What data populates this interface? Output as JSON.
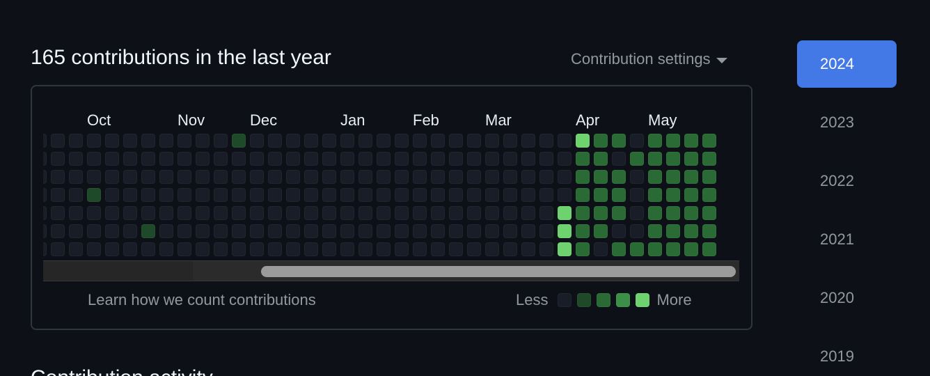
{
  "header": {
    "title": "165 contributions in the last year",
    "settings_label": "Contribution settings",
    "settings_icon": "caret-down-icon"
  },
  "calendar": {
    "months": [
      {
        "label": "Oct",
        "week": 3
      },
      {
        "label": "Nov",
        "week": 8
      },
      {
        "label": "Dec",
        "week": 12
      },
      {
        "label": "Jan",
        "week": 17
      },
      {
        "label": "Feb",
        "week": 21
      },
      {
        "label": "Mar",
        "week": 25
      },
      {
        "label": "Apr",
        "week": 30
      },
      {
        "label": "May",
        "week": 34
      }
    ],
    "levels": [
      "#161b22",
      "#0e4429",
      "#006d32",
      "#26a641",
      "#39d353"
    ],
    "level_colors": [
      "#181d27",
      "#1f4a2a",
      "#2a6b35",
      "#3b8f47",
      "#6ed36f"
    ],
    "weeks": [
      [
        0,
        0,
        0,
        0,
        0,
        0,
        0
      ],
      [
        0,
        0,
        0,
        0,
        0,
        0,
        0
      ],
      [
        0,
        0,
        0,
        0,
        0,
        0,
        0
      ],
      [
        0,
        0,
        0,
        1,
        0,
        0,
        0
      ],
      [
        0,
        0,
        0,
        0,
        0,
        0,
        0
      ],
      [
        0,
        0,
        0,
        0,
        0,
        0,
        0
      ],
      [
        0,
        0,
        0,
        0,
        0,
        1,
        0
      ],
      [
        0,
        0,
        0,
        0,
        0,
        0,
        0
      ],
      [
        0,
        0,
        0,
        0,
        0,
        0,
        0
      ],
      [
        0,
        0,
        0,
        0,
        0,
        0,
        0
      ],
      [
        0,
        0,
        0,
        0,
        0,
        0,
        0
      ],
      [
        1,
        0,
        0,
        0,
        0,
        0,
        0
      ],
      [
        0,
        0,
        0,
        0,
        0,
        0,
        0
      ],
      [
        0,
        0,
        0,
        0,
        0,
        0,
        0
      ],
      [
        0,
        0,
        0,
        0,
        0,
        0,
        0
      ],
      [
        0,
        0,
        0,
        0,
        0,
        0,
        0
      ],
      [
        0,
        0,
        0,
        0,
        0,
        0,
        0
      ],
      [
        0,
        0,
        0,
        0,
        0,
        0,
        0
      ],
      [
        0,
        0,
        0,
        0,
        0,
        0,
        0
      ],
      [
        0,
        0,
        0,
        0,
        0,
        0,
        0
      ],
      [
        0,
        0,
        0,
        0,
        0,
        0,
        0
      ],
      [
        0,
        0,
        0,
        0,
        0,
        0,
        0
      ],
      [
        0,
        0,
        0,
        0,
        0,
        0,
        0
      ],
      [
        0,
        0,
        0,
        0,
        0,
        0,
        0
      ],
      [
        0,
        0,
        0,
        0,
        0,
        0,
        0
      ],
      [
        0,
        0,
        0,
        0,
        0,
        0,
        0
      ],
      [
        0,
        0,
        0,
        0,
        0,
        0,
        0
      ],
      [
        0,
        0,
        0,
        0,
        0,
        0,
        0
      ],
      [
        0,
        0,
        0,
        0,
        0,
        0,
        0
      ],
      [
        0,
        0,
        0,
        0,
        4,
        4,
        4
      ],
      [
        4,
        2,
        2,
        2,
        2,
        2,
        2
      ],
      [
        2,
        2,
        2,
        2,
        2,
        2,
        0
      ],
      [
        2,
        0,
        2,
        2,
        2,
        0,
        2
      ],
      [
        0,
        2,
        0,
        0,
        0,
        0,
        2
      ],
      [
        2,
        2,
        2,
        2,
        2,
        2,
        2
      ],
      [
        2,
        2,
        2,
        2,
        2,
        2,
        2
      ],
      [
        2,
        2,
        2,
        2,
        2,
        2,
        2
      ],
      [
        2,
        2,
        2,
        2,
        2,
        2,
        2
      ]
    ],
    "scrollbar_fraction_visible": 0.68
  },
  "footer": {
    "learn_link": "Learn how we count contributions",
    "less": "Less",
    "more": "More"
  },
  "years": [
    "2024",
    "2023",
    "2022",
    "2021",
    "2020",
    "2019"
  ],
  "active_year": "2024",
  "activity": {
    "title": "Contribution activity"
  }
}
